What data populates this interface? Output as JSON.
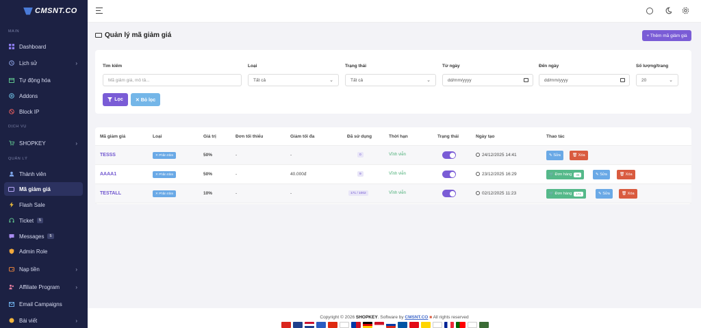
{
  "brand": {
    "logo_text": "CMSNT.CO"
  },
  "sidebar": {
    "sections": [
      "MAIN",
      "DỊCH VỤ",
      "QUẢN LÝ"
    ],
    "items": [
      {
        "label": "Dashboard",
        "icon": "dashboard-icon"
      },
      {
        "label": "Lịch sử",
        "icon": "clock-icon"
      },
      {
        "label": "Tự động hóa",
        "icon": "calendar-icon"
      },
      {
        "label": "Addons",
        "icon": "plus-circle-icon"
      },
      {
        "label": "Block IP",
        "icon": "ban-icon"
      },
      {
        "label": "SHOPKEY",
        "icon": "cart-icon"
      },
      {
        "label": "Thành viên",
        "icon": "user-icon"
      },
      {
        "label": "Mã giảm giá",
        "icon": "ticket-icon"
      },
      {
        "label": "Flash Sale",
        "icon": "bolt-icon"
      },
      {
        "label": "Ticket",
        "icon": "headset-icon",
        "count": "5"
      },
      {
        "label": "Messages",
        "icon": "message-icon",
        "count": "5"
      },
      {
        "label": "Admin Role",
        "icon": "shield-icon"
      },
      {
        "label": "Nạp tiền",
        "icon": "wallet-icon"
      },
      {
        "label": "Affiliate Program",
        "icon": "affiliate-icon"
      },
      {
        "label": "Email Campaigns",
        "icon": "mail-icon"
      },
      {
        "label": "Bài viết",
        "icon": "article-icon"
      }
    ]
  },
  "page": {
    "title": "Quản lý mã giảm giá",
    "add_button": "+ Thêm mã giảm giá"
  },
  "filters": {
    "search_label": "Tìm kiếm",
    "search_placeholder": "Mã giảm giá, mô tả...",
    "type_label": "Loại",
    "type_value": "Tất cả",
    "status_label": "Trạng thái",
    "status_value": "Tất cả",
    "from_label": "Từ ngày",
    "from_value": "dd/mm/yyyy",
    "to_label": "Đến ngày",
    "to_value": "dd/mm/yyyy",
    "per_page_label": "Số lượng/trang",
    "per_page_value": "20",
    "filter_button": "Lọc",
    "clear_button": "✕ Bỏ lọc"
  },
  "table": {
    "headers": [
      "Mã giảm giá",
      "Loại",
      "Giá trị",
      "Đơn tối thiểu",
      "Giảm tối đa",
      "Đã sử dụng",
      "Thời hạn",
      "Trạng thái",
      "Ngày tạo",
      "Thao tác"
    ],
    "rows": [
      {
        "code": "TESSS",
        "type": "✕ Phần trăm",
        "value": "50%",
        "min_order": "-",
        "max_discount": "-",
        "used": "0",
        "duration": "Vĩnh viễn",
        "created": "24/12/2025 14:41",
        "orders": ""
      },
      {
        "code": "AAAA1",
        "type": "✕ Phần trăm",
        "value": "50%",
        "min_order": "-",
        "max_discount": "40.000đ",
        "used": "9",
        "duration": "Vĩnh viễn",
        "created": "23/12/2025 16:29",
        "orders": "36"
      },
      {
        "code": "TESTALL",
        "type": "✕ Phần trăm",
        "value": "10%",
        "min_order": "-",
        "max_discount": "-",
        "used": "171 / 1002",
        "duration": "Vĩnh viễn",
        "created": "02/12/2025 11:23",
        "orders": "171"
      }
    ],
    "orders_label": "Đơn hàng",
    "edit_label": "Sửa",
    "delete_label": "Xóa"
  },
  "footer": {
    "prefix": "Copyright © 2026",
    "brand": "SHOPKEY",
    "middle": ". Software by",
    "link": "CMSNT.CO",
    "suffix": "All rights reserved"
  },
  "colors": {
    "accent": "#7a5cd6",
    "sidebar": "#1c2143",
    "success": "#55b98a",
    "info": "#6aa9e6",
    "danger": "#d95b3f"
  }
}
